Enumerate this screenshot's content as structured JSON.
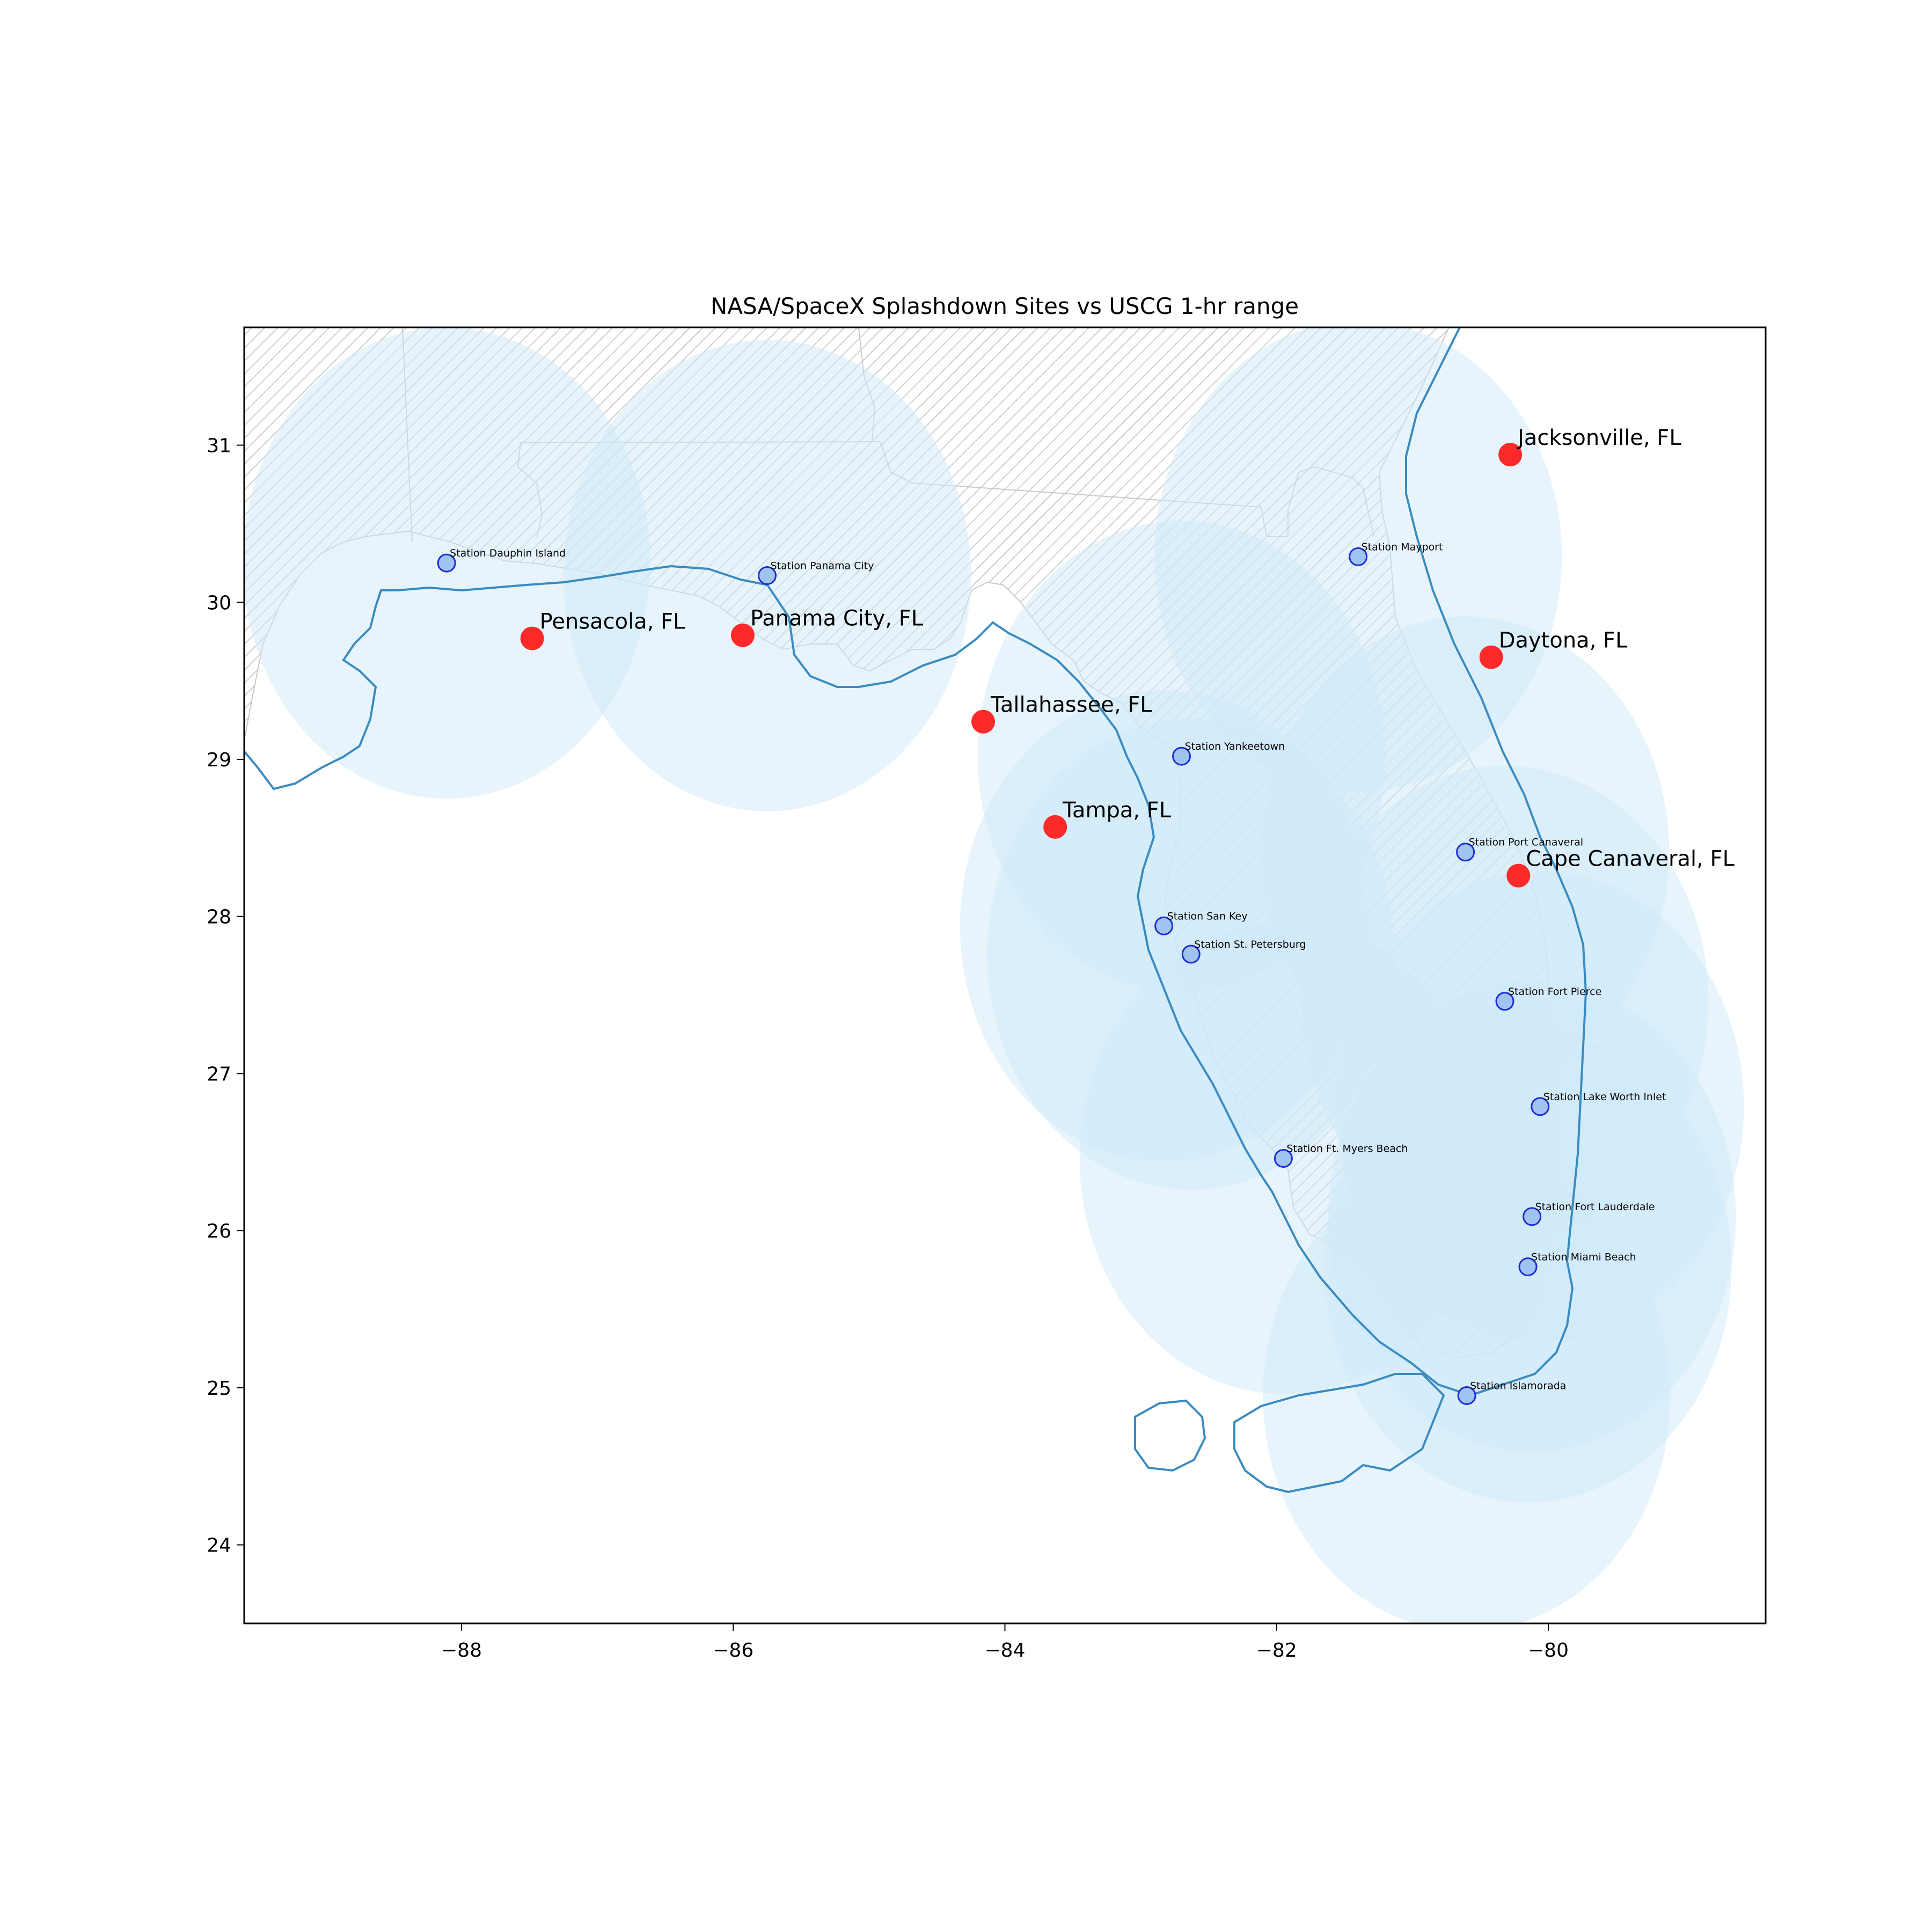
{
  "chart_data": {
    "type": "map",
    "title": "NASA/SpaceX Splashdown Sites vs USCG 1-hr range",
    "xlim": [
      -89.6,
      -78.4
    ],
    "ylim": [
      23.5,
      31.75
    ],
    "x_ticks": [
      -88,
      -86,
      -84,
      -82,
      -80
    ],
    "y_ticks": [
      24,
      25,
      26,
      27,
      28,
      29,
      30,
      31
    ],
    "x_tick_labels": [
      "−88",
      "−86",
      "−84",
      "−82",
      "−80"
    ],
    "y_tick_labels": [
      "24",
      "25",
      "26",
      "27",
      "28",
      "29",
      "30",
      "31"
    ],
    "range_radius_deg": 1.5,
    "colors": {
      "land_hatch": "#cccccc",
      "range_fill": "#cfeaf9",
      "coast_buffer_line": "#3a8bbf",
      "station_fill": "#9fc4f2",
      "station_edge": "#1f2bd6",
      "site_fill": "#ff1f1f"
    },
    "sites": [
      {
        "name": "Pensacola, FL",
        "lon": -87.48,
        "lat": 29.77
      },
      {
        "name": "Panama City, FL",
        "lon": -85.93,
        "lat": 29.79
      },
      {
        "name": "Tallahassee, FL",
        "lon": -84.16,
        "lat": 29.24
      },
      {
        "name": "Tampa, FL",
        "lon": -83.63,
        "lat": 28.57
      },
      {
        "name": "Jacksonville, FL",
        "lon": -80.28,
        "lat": 30.94
      },
      {
        "name": "Daytona, FL",
        "lon": -80.42,
        "lat": 29.65
      },
      {
        "name": "Cape Canaveral, FL",
        "lon": -80.22,
        "lat": 28.26
      }
    ],
    "stations": [
      {
        "name": "Station Dauphin Island",
        "lon": -88.11,
        "lat": 30.25
      },
      {
        "name": "Station Panama City",
        "lon": -85.75,
        "lat": 30.17
      },
      {
        "name": "Station Mayport",
        "lon": -81.4,
        "lat": 30.29
      },
      {
        "name": "Station Yankeetown",
        "lon": -82.7,
        "lat": 29.02
      },
      {
        "name": "Station Port Canaveral",
        "lon": -80.61,
        "lat": 28.41
      },
      {
        "name": "Station San Key",
        "lon": -82.83,
        "lat": 27.94
      },
      {
        "name": "Station St. Petersburg",
        "lon": -82.63,
        "lat": 27.76
      },
      {
        "name": "Station Fort Pierce",
        "lon": -80.32,
        "lat": 27.46
      },
      {
        "name": "Station Lake Worth Inlet",
        "lon": -80.06,
        "lat": 26.79
      },
      {
        "name": "Station Ft. Myers Beach",
        "lon": -81.95,
        "lat": 26.46
      },
      {
        "name": "Station Fort Lauderdale",
        "lon": -80.12,
        "lat": 26.09
      },
      {
        "name": "Station Miami Beach",
        "lon": -80.15,
        "lat": 25.77
      },
      {
        "name": "Station Islamorada",
        "lon": -80.6,
        "lat": 24.95
      }
    ]
  }
}
